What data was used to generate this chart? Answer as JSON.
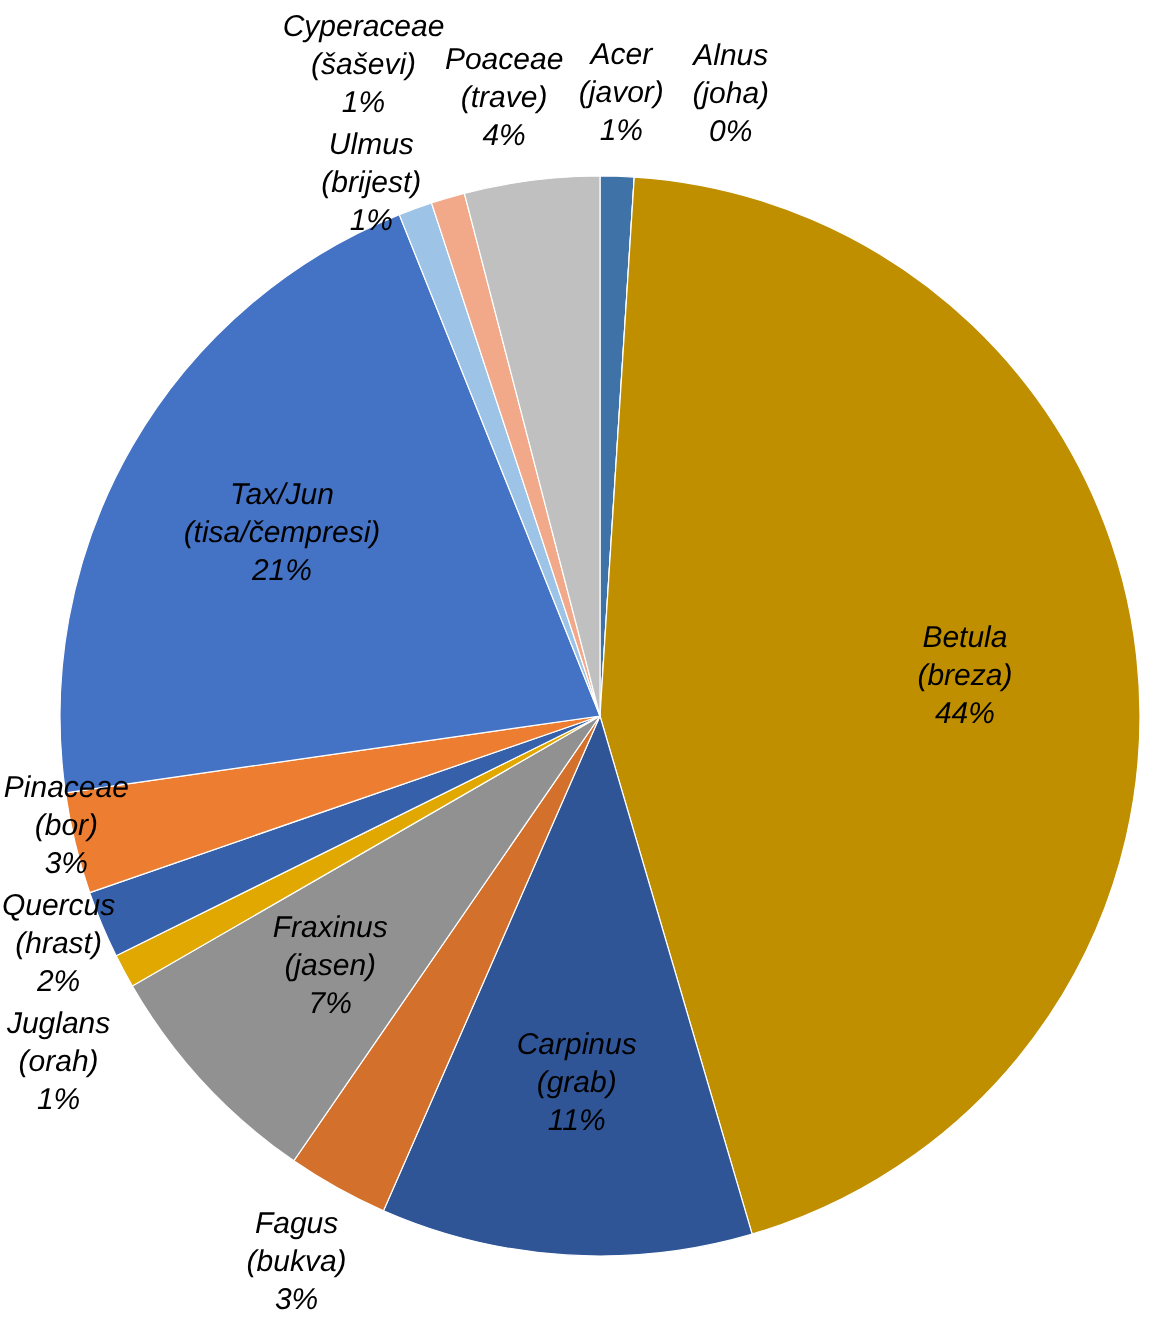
{
  "chart_data": {
    "type": "pie",
    "categories": [
      "Acer (javor)",
      "Alnus (joha)",
      "Betula (breza)",
      "Carpinus (grab)",
      "Fagus (bukva)",
      "Fraxinus (jasen)",
      "Juglans (orah)",
      "Quercus (hrast)",
      "Pinaceae (bor)",
      "Tax/Jun (tisa/čempresi)",
      "Ulmus (brijest)",
      "Cyperaceae (šaševi)",
      "Poaceae (trave)"
    ],
    "values": [
      1,
      0,
      44,
      11,
      3,
      7,
      1,
      2,
      3,
      21,
      1,
      1,
      4
    ],
    "value_labels": [
      "1%",
      "0%",
      "44%",
      "11%",
      "3%",
      "7%",
      "1%",
      "2%",
      "3%",
      "21%",
      "1%",
      "1%",
      "4%"
    ],
    "colors": [
      "#3f72a6",
      "#7f7f7f",
      "#bf8f00",
      "#2f5597",
      "#d2702c",
      "#919191",
      "#e0a800",
      "#3760aa",
      "#ed7d31",
      "#4472c4",
      "#9dc3e6",
      "#f1a98a",
      "#c0c0c0"
    ]
  }
}
